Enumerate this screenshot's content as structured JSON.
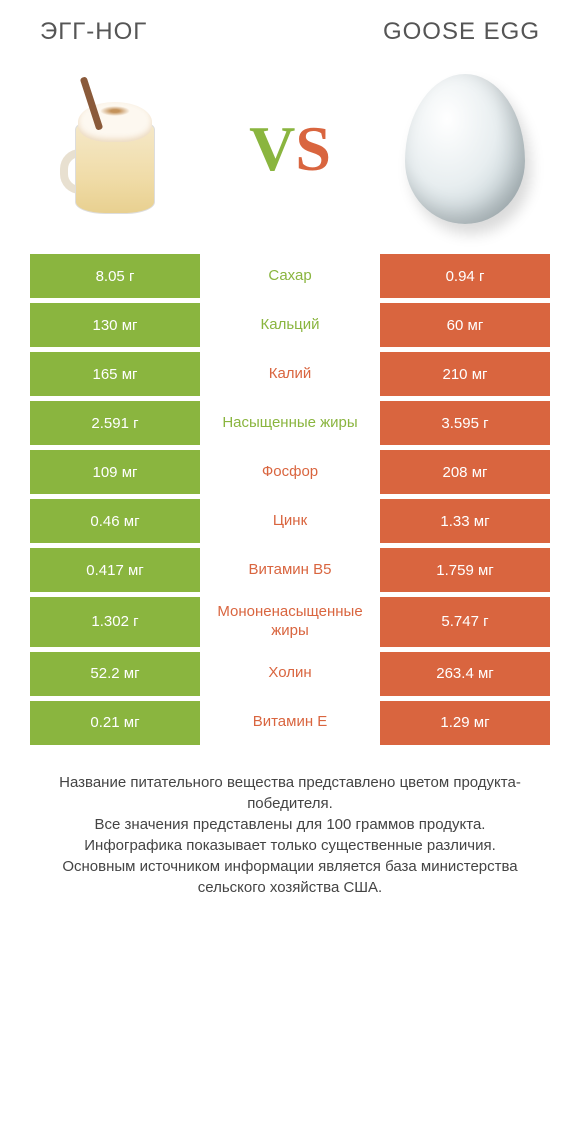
{
  "left_title": "ЭГГ-НОГ",
  "right_title": "GOOSE EGG",
  "vs_v": "V",
  "vs_s": "S",
  "colors": {
    "left": "#8ab53f",
    "right": "#d9653f",
    "bg": "#ffffff",
    "text": "#444444"
  },
  "rows": [
    {
      "left": "8.05 г",
      "label": "Сахар",
      "right": "0.94 г",
      "winner": "left"
    },
    {
      "left": "130 мг",
      "label": "Кальций",
      "right": "60 мг",
      "winner": "left"
    },
    {
      "left": "165 мг",
      "label": "Калий",
      "right": "210 мг",
      "winner": "right"
    },
    {
      "left": "2.591 г",
      "label": "Насыщенные жиры",
      "right": "3.595 г",
      "winner": "left"
    },
    {
      "left": "109 мг",
      "label": "Фосфор",
      "right": "208 мг",
      "winner": "right"
    },
    {
      "left": "0.46 мг",
      "label": "Цинк",
      "right": "1.33 мг",
      "winner": "right"
    },
    {
      "left": "0.417 мг",
      "label": "Витамин B5",
      "right": "1.759 мг",
      "winner": "right"
    },
    {
      "left": "1.302 г",
      "label": "Мононенасыщенные жиры",
      "right": "5.747 г",
      "winner": "right"
    },
    {
      "left": "52.2 мг",
      "label": "Холин",
      "right": "263.4 мг",
      "winner": "right"
    },
    {
      "left": "0.21 мг",
      "label": "Витамин E",
      "right": "1.29 мг",
      "winner": "right"
    }
  ],
  "footer_lines": [
    "Название питательного вещества представлено цветом продукта-победителя.",
    "Все значения представлены для 100 граммов продукта.",
    "Инфографика показывает только существенные различия.",
    "Основным источником информации является база министерства сельского хозяйства США."
  ]
}
